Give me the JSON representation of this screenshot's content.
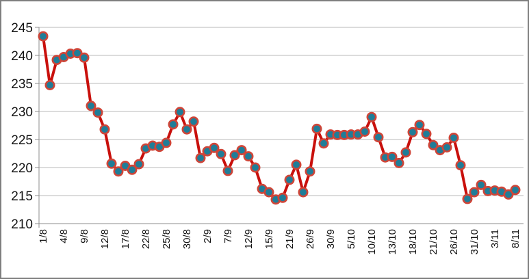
{
  "chart": {
    "background": "#ffffff",
    "frame_border_color": "#7e7e7e",
    "line_color": "#c9100c",
    "marker_fill_color": "#1f7d98",
    "marker_ring_color": "#cf4538",
    "gridline_color": "#b9b9b9",
    "axis_color": "#8c8c8c",
    "label_color": "#111111"
  },
  "chart_data": {
    "type": "line",
    "title": "",
    "xlabel": "",
    "ylabel": "",
    "legend": "none",
    "grid": "horizontal",
    "ylim": [
      210,
      245
    ],
    "ytick_step": 5,
    "y_tick_labels": [
      "245",
      "240",
      "235",
      "230",
      "225",
      "220",
      "215",
      "210"
    ],
    "x_tick_labels": [
      "1/8",
      "4/8",
      "9/8",
      "12/8",
      "17/8",
      "22/8",
      "25/8",
      "30/8",
      "2/9",
      "7/9",
      "12/9",
      "15/9",
      "21/9",
      "26/9",
      "30/9",
      "5/10",
      "10/10",
      "13/10",
      "18/10",
      "21/10",
      "26/10",
      "31/10",
      "3/11",
      "8/11"
    ],
    "x_tick_every": 3,
    "values": [
      243.4,
      234.7,
      239.2,
      239.7,
      240.3,
      240.4,
      239.6,
      231.0,
      229.8,
      226.8,
      220.7,
      219.3,
      220.3,
      219.6,
      220.6,
      223.4,
      223.9,
      223.7,
      224.4,
      227.7,
      229.9,
      226.8,
      228.2,
      221.7,
      222.9,
      223.5,
      222.4,
      219.4,
      222.2,
      223.1,
      222.0,
      220.0,
      216.2,
      215.6,
      214.3,
      214.6,
      217.8,
      220.5,
      215.6,
      219.3,
      226.9,
      224.3,
      225.9,
      225.8,
      225.8,
      225.9,
      225.9,
      226.4,
      229.0,
      225.4,
      221.8,
      221.9,
      220.8,
      222.7,
      226.3,
      227.6,
      226.0,
      224.0,
      223.1,
      223.6,
      225.3,
      220.4,
      214.4,
      215.6,
      216.9,
      215.8,
      215.9,
      215.7,
      215.2,
      216.0
    ]
  }
}
